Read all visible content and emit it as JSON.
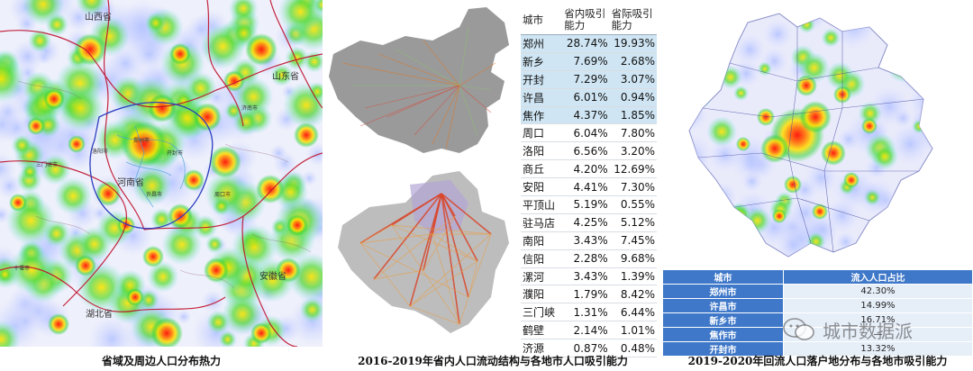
{
  "panel1": {
    "caption": "省域及周边人口分布热力",
    "labels": {
      "shanxi": "山西省",
      "shandong": "山东省",
      "henan": "河南省",
      "hubei": "湖北省",
      "anhui": "安徽省",
      "city_a": "济南市",
      "city_b": "郑州市",
      "city_c": "开封市",
      "city_d": "洛阳市",
      "city_e": "三门峡市",
      "city_f": "十堰市",
      "city_g": "许昌市",
      "city_h": "周口市"
    }
  },
  "panel2": {
    "caption": "2016-2019年省内人口流动结构与各地市人口吸引能力",
    "table": {
      "headers": [
        "城市",
        "省内吸引能力",
        "省际吸引能力"
      ],
      "rows": [
        {
          "city": "郑州",
          "intra": "28.74%",
          "inter": "19.93%",
          "highlight": true
        },
        {
          "city": "新乡",
          "intra": "7.69%",
          "inter": "2.68%",
          "highlight": true
        },
        {
          "city": "开封",
          "intra": "7.29%",
          "inter": "3.07%",
          "highlight": true
        },
        {
          "city": "许昌",
          "intra": "6.01%",
          "inter": "0.94%",
          "highlight": true
        },
        {
          "city": "焦作",
          "intra": "4.37%",
          "inter": "1.85%",
          "highlight": true
        },
        {
          "city": "周口",
          "intra": "6.04%",
          "inter": "7.80%",
          "highlight": false
        },
        {
          "city": "洛阳",
          "intra": "6.56%",
          "inter": "3.20%",
          "highlight": false
        },
        {
          "city": "商丘",
          "intra": "4.20%",
          "inter": "12.69%",
          "highlight": false
        },
        {
          "city": "安阳",
          "intra": "4.41%",
          "inter": "7.30%",
          "highlight": false
        },
        {
          "city": "平顶山",
          "intra": "5.19%",
          "inter": "0.55%",
          "highlight": false
        },
        {
          "city": "驻马店",
          "intra": "4.25%",
          "inter": "5.12%",
          "highlight": false
        },
        {
          "city": "南阳",
          "intra": "3.43%",
          "inter": "7.45%",
          "highlight": false
        },
        {
          "city": "信阳",
          "intra": "2.28%",
          "inter": "9.68%",
          "highlight": false
        },
        {
          "city": "漯河",
          "intra": "3.43%",
          "inter": "1.39%",
          "highlight": false
        },
        {
          "city": "濮阳",
          "intra": "1.79%",
          "inter": "8.42%",
          "highlight": false
        },
        {
          "city": "三门峡",
          "intra": "1.31%",
          "inter": "6.44%",
          "highlight": false
        },
        {
          "city": "鹤壁",
          "intra": "2.14%",
          "inter": "1.01%",
          "highlight": false
        },
        {
          "city": "济源",
          "intra": "0.87%",
          "inter": "0.48%",
          "highlight": false
        }
      ]
    }
  },
  "panel3": {
    "caption": "2019-2020年回流人口落户地分布与各地市吸引能力",
    "table": {
      "headers": [
        "城市",
        "流入人口占比"
      ],
      "rows": [
        {
          "city": "郑州市",
          "share": "42.30%"
        },
        {
          "city": "许昌市",
          "share": "14.99%"
        },
        {
          "city": "新乡市",
          "share": "16.71%"
        },
        {
          "city": "焦作市",
          "share": "—"
        },
        {
          "city": "开封市",
          "share": "13.32%"
        }
      ]
    }
  },
  "watermark": "城市数据派",
  "colors": {
    "heat_high": "#ff2a1a",
    "heat_mid": "#ffe000",
    "heat_low": "#2fd23c",
    "border": "#c0102a",
    "table_header": "#3f78c9",
    "table_highlight": "#cfe5f3"
  }
}
